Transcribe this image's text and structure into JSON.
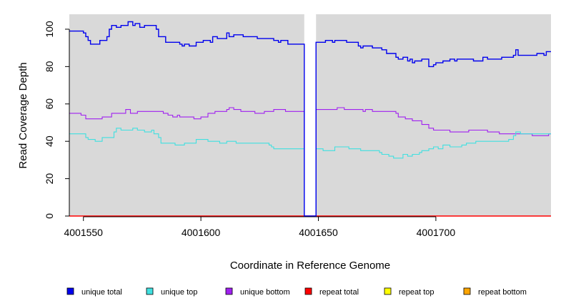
{
  "chart_data": {
    "type": "line",
    "title": "",
    "xlabel": "Coordinate in Reference Genome",
    "ylabel": "Read Coverage Depth",
    "xlim": [
      4001544,
      4001749
    ],
    "ylim": [
      0,
      108
    ],
    "x_ticks": [
      4001550,
      4001600,
      4001650,
      4001700
    ],
    "y_ticks": [
      0,
      20,
      40,
      60,
      80,
      100
    ],
    "plot_background": "#d9d9d9",
    "gap_region": [
      4001644,
      4001649
    ],
    "gap_color": "#ffffff",
    "legend_position": "bottom",
    "series": [
      {
        "name": "unique total",
        "color": "#0000ee",
        "step": true,
        "points": [
          [
            4001544,
            99
          ],
          [
            4001550,
            98
          ],
          [
            4001551,
            96
          ],
          [
            4001552,
            94
          ],
          [
            4001553,
            92
          ],
          [
            4001557,
            94
          ],
          [
            4001560,
            96
          ],
          [
            4001561,
            100
          ],
          [
            4001562,
            102
          ],
          [
            4001564,
            101
          ],
          [
            4001566,
            102
          ],
          [
            4001569,
            104
          ],
          [
            4001571,
            102
          ],
          [
            4001572,
            103
          ],
          [
            4001574,
            101
          ],
          [
            4001576,
            102
          ],
          [
            4001581,
            100
          ],
          [
            4001582,
            96
          ],
          [
            4001585,
            93
          ],
          [
            4001591,
            92
          ],
          [
            4001592,
            91
          ],
          [
            4001593,
            92
          ],
          [
            4001595,
            91
          ],
          [
            4001597,
            91
          ],
          [
            4001598,
            93
          ],
          [
            4001601,
            94
          ],
          [
            4001604,
            93
          ],
          [
            4001605,
            96
          ],
          [
            4001607,
            95
          ],
          [
            4001611,
            98
          ],
          [
            4001612,
            96
          ],
          [
            4001614,
            97
          ],
          [
            4001618,
            96
          ],
          [
            4001624,
            95
          ],
          [
            4001631,
            94
          ],
          [
            4001633,
            93
          ],
          [
            4001634,
            94
          ],
          [
            4001637,
            92
          ],
          [
            4001644,
            0
          ],
          [
            4001649,
            93
          ],
          [
            4001653,
            94
          ],
          [
            4001656,
            93
          ],
          [
            4001657,
            94
          ],
          [
            4001662,
            93
          ],
          [
            4001667,
            91
          ],
          [
            4001668,
            90
          ],
          [
            4001669,
            91
          ],
          [
            4001673,
            90
          ],
          [
            4001677,
            89
          ],
          [
            4001679,
            87
          ],
          [
            4001683,
            85
          ],
          [
            4001684,
            84
          ],
          [
            4001686,
            85
          ],
          [
            4001688,
            83
          ],
          [
            4001689,
            84
          ],
          [
            4001690,
            82
          ],
          [
            4001691,
            83
          ],
          [
            4001694,
            84
          ],
          [
            4001697,
            80
          ],
          [
            4001699,
            81
          ],
          [
            4001700,
            82
          ],
          [
            4001703,
            83
          ],
          [
            4001706,
            84
          ],
          [
            4001708,
            83
          ],
          [
            4001709,
            84
          ],
          [
            4001716,
            83
          ],
          [
            4001720,
            85
          ],
          [
            4001722,
            84
          ],
          [
            4001728,
            85
          ],
          [
            4001733,
            86
          ],
          [
            4001734,
            89
          ],
          [
            4001735,
            86
          ],
          [
            4001742,
            86
          ],
          [
            4001743,
            87
          ],
          [
            4001746,
            86
          ],
          [
            4001747,
            88
          ],
          [
            4001749,
            88
          ]
        ]
      },
      {
        "name": "unique top",
        "color": "#40e0e0",
        "step": true,
        "points": [
          [
            4001544,
            44
          ],
          [
            4001551,
            42
          ],
          [
            4001552,
            41
          ],
          [
            4001555,
            40
          ],
          [
            4001558,
            42
          ],
          [
            4001563,
            45
          ],
          [
            4001564,
            47
          ],
          [
            4001566,
            46
          ],
          [
            4001571,
            47
          ],
          [
            4001573,
            46
          ],
          [
            4001576,
            45
          ],
          [
            4001579,
            46
          ],
          [
            4001580,
            44
          ],
          [
            4001582,
            42
          ],
          [
            4001583,
            39
          ],
          [
            4001586,
            39
          ],
          [
            4001589,
            38
          ],
          [
            4001592,
            38
          ],
          [
            4001593,
            39
          ],
          [
            4001598,
            41
          ],
          [
            4001603,
            40
          ],
          [
            4001608,
            39
          ],
          [
            4001611,
            40
          ],
          [
            4001615,
            39
          ],
          [
            4001627,
            39
          ],
          [
            4001629,
            38
          ],
          [
            4001630,
            37
          ],
          [
            4001631,
            36
          ],
          [
            4001636,
            36
          ],
          [
            4001644,
            0
          ],
          [
            4001649,
            36
          ],
          [
            4001652,
            35
          ],
          [
            4001656,
            35
          ],
          [
            4001657,
            37
          ],
          [
            4001663,
            36
          ],
          [
            4001668,
            35
          ],
          [
            4001676,
            34
          ],
          [
            4001677,
            33
          ],
          [
            4001680,
            32
          ],
          [
            4001682,
            31
          ],
          [
            4001685,
            31
          ],
          [
            4001686,
            33
          ],
          [
            4001688,
            32
          ],
          [
            4001690,
            33
          ],
          [
            4001693,
            34
          ],
          [
            4001694,
            35
          ],
          [
            4001697,
            36
          ],
          [
            4001699,
            37
          ],
          [
            4001701,
            36
          ],
          [
            4001703,
            38
          ],
          [
            4001706,
            37
          ],
          [
            4001708,
            37
          ],
          [
            4001711,
            38
          ],
          [
            4001713,
            39
          ],
          [
            4001717,
            40
          ],
          [
            4001718,
            40
          ],
          [
            4001721,
            40
          ],
          [
            4001728,
            40
          ],
          [
            4001731,
            41
          ],
          [
            4001733,
            43
          ],
          [
            4001734,
            45
          ],
          [
            4001736,
            44
          ],
          [
            4001749,
            44
          ]
        ]
      },
      {
        "name": "unique bottom",
        "color": "#a020f0",
        "step": true,
        "points": [
          [
            4001544,
            55
          ],
          [
            4001549,
            54
          ],
          [
            4001551,
            52
          ],
          [
            4001558,
            53
          ],
          [
            4001562,
            55
          ],
          [
            4001568,
            57
          ],
          [
            4001570,
            55
          ],
          [
            4001573,
            56
          ],
          [
            4001584,
            55
          ],
          [
            4001586,
            54
          ],
          [
            4001588,
            53
          ],
          [
            4001590,
            54
          ],
          [
            4001591,
            53
          ],
          [
            4001597,
            52
          ],
          [
            4001600,
            53
          ],
          [
            4001603,
            55
          ],
          [
            4001606,
            56
          ],
          [
            4001611,
            57
          ],
          [
            4001612,
            58
          ],
          [
            4001614,
            57
          ],
          [
            4001617,
            56
          ],
          [
            4001623,
            55
          ],
          [
            4001627,
            56
          ],
          [
            4001631,
            57
          ],
          [
            4001636,
            56
          ],
          [
            4001644,
            0
          ],
          [
            4001649,
            57
          ],
          [
            4001655,
            57
          ],
          [
            4001658,
            58
          ],
          [
            4001661,
            57
          ],
          [
            4001669,
            56
          ],
          [
            4001670,
            57
          ],
          [
            4001673,
            56
          ],
          [
            4001676,
            56
          ],
          [
            4001683,
            55
          ],
          [
            4001684,
            53
          ],
          [
            4001687,
            52
          ],
          [
            4001690,
            51
          ],
          [
            4001692,
            51
          ],
          [
            4001694,
            49
          ],
          [
            4001696,
            49
          ],
          [
            4001697,
            47
          ],
          [
            4001699,
            46
          ],
          [
            4001703,
            46
          ],
          [
            4001706,
            45
          ],
          [
            4001714,
            46
          ],
          [
            4001718,
            46
          ],
          [
            4001721,
            46
          ],
          [
            4001722,
            45
          ],
          [
            4001727,
            44
          ],
          [
            4001733,
            44
          ],
          [
            4001740,
            44
          ],
          [
            4001741,
            43
          ],
          [
            4001748,
            44
          ],
          [
            4001749,
            44
          ]
        ]
      },
      {
        "name": "repeat total",
        "color": "#ff0000",
        "step": true,
        "points": [
          [
            4001544,
            0
          ],
          [
            4001749,
            0
          ]
        ]
      },
      {
        "name": "repeat top",
        "color": "#ffff00",
        "step": true,
        "points": [
          [
            4001544,
            0
          ],
          [
            4001749,
            0
          ]
        ]
      },
      {
        "name": "repeat bottom",
        "color": "#ffa500",
        "step": true,
        "points": [
          [
            4001544,
            0
          ],
          [
            4001749,
            0
          ]
        ]
      }
    ]
  }
}
